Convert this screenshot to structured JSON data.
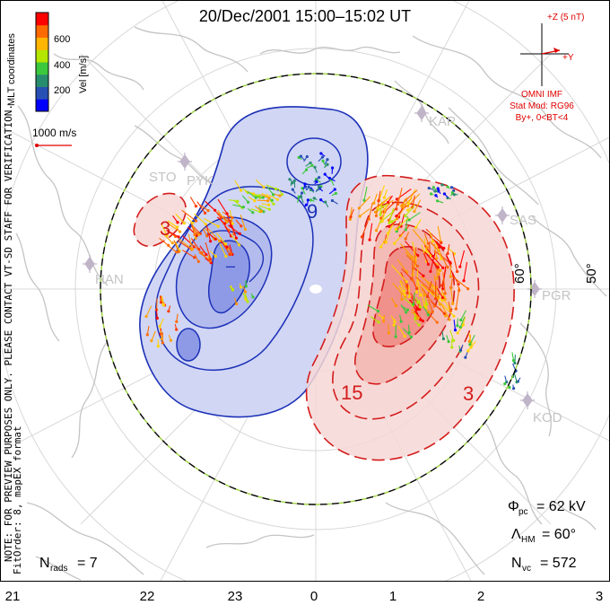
{
  "title": "20/Dec/2001  15:00–15:02  UT",
  "colorbar": {
    "ticks": [
      "600",
      "400",
      "200"
    ],
    "label": "Vel [m/s]",
    "colors": [
      "#ff0000",
      "#ff6a00",
      "#ffb400",
      "#b4e600",
      "#3cc83c",
      "#288c6e",
      "#2850b4",
      "#0000ff"
    ]
  },
  "coord_label": "MLT coordinates",
  "ref_vector": "1000 m/s",
  "imf": {
    "z_label": "+Z (5 nT)",
    "y_label": "+Y",
    "source": "OMNI IMF",
    "model": "Stat Mod: RG96",
    "condition": "By+, 0<BT<4",
    "color": "#e00000"
  },
  "stations": [
    "KAP",
    "SAS",
    "PGR",
    "KOD",
    "STO",
    "PYK",
    "HAN"
  ],
  "lat_labels": [
    "60°",
    "50°"
  ],
  "contour_labels": [
    "3",
    "9",
    "15",
    "3",
    "–"
  ],
  "stats": {
    "pc_sym": "Φ",
    "pc_sub": "pc",
    "pc_val": "= 62 kV",
    "hm_sym": "Λ",
    "hm_sub": "HM",
    "hm_val": "= 60°",
    "vc_sym": "N",
    "vc_sub": "vc",
    "vc_val": "= 572",
    "rads_sym": "N",
    "rads_sub": "rads",
    "rads_val": "= 7"
  },
  "side_notes": {
    "preview": "NOTE: FOR PREVIEW PURPOSES ONLY. PLEASE CONTACT VT-SD STAFF FOR VERIFICATION.",
    "fit": "FitOrder: 8, mapEX format"
  },
  "mlt_axis": [
    "21",
    "22",
    "23",
    "0",
    "1",
    "2",
    "3"
  ],
  "colors": {
    "neg_fill": "#d0d6f4",
    "neg_fill2": "#b4bcee",
    "neg_fill3": "#8e9ae6",
    "pos_fill": "#f6d8d6",
    "pos_fill2": "#f2b6b0",
    "pos_fill3": "#ee8a84",
    "neg_line": "#1c30b8",
    "pos_line": "#d41c1c",
    "coast": "#c4c4c4",
    "grid": "#d8d8d8",
    "station": "#c0b4c8"
  }
}
